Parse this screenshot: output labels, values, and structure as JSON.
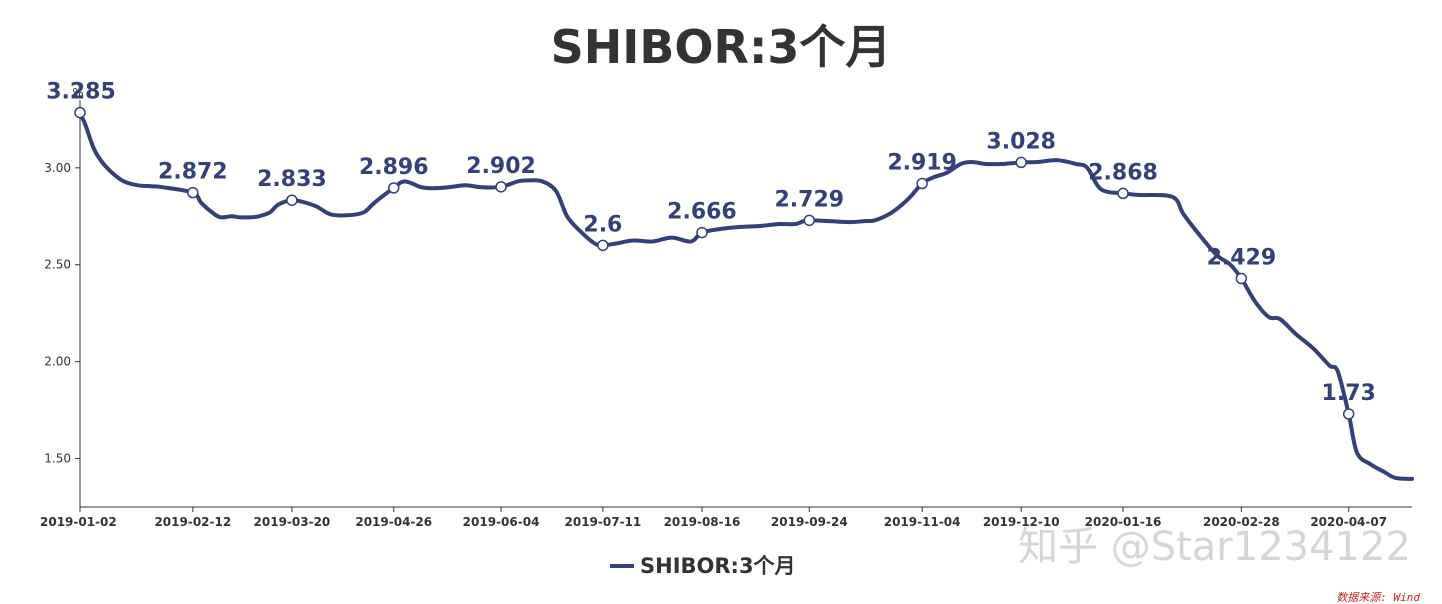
{
  "colors": {
    "line": "#34407a",
    "axis": "#333333",
    "text": "#333333",
    "source": "#cc2222",
    "watermark": "#d6d6d6"
  },
  "watermark": "知乎 @Star1234122",
  "source": "数据来源: Wind",
  "chart_data": {
    "type": "line",
    "title": "SHIBOR:3个月",
    "y_unit": "%",
    "ylim": [
      1.25,
      3.35
    ],
    "y_ticks": [
      1.5,
      2.0,
      2.5,
      3.0
    ],
    "y_tick_labels": [
      "1.50",
      "2.00",
      "2.50",
      "3.00"
    ],
    "x_range": [
      "2019-01-02",
      "2020-04-30"
    ],
    "x_ticks": [
      "2019-01-02",
      "2019-02-12",
      "2019-03-20",
      "2019-04-26",
      "2019-06-04",
      "2019-07-11",
      "2019-08-16",
      "2019-09-24",
      "2019-11-04",
      "2019-12-10",
      "2020-01-16",
      "2020-02-28",
      "2020-04-07"
    ],
    "grid": false,
    "legend_position": "bottom",
    "series": [
      {
        "name": "SHIBOR:3个月",
        "x": [
          "2019-01-02",
          "2019-01-04",
          "2019-01-07",
          "2019-01-10",
          "2019-01-14",
          "2019-01-18",
          "2019-01-23",
          "2019-01-28",
          "2019-02-01",
          "2019-02-12",
          "2019-02-15",
          "2019-02-19",
          "2019-02-22",
          "2019-02-26",
          "2019-03-01",
          "2019-03-05",
          "2019-03-08",
          "2019-03-12",
          "2019-03-15",
          "2019-03-20",
          "2019-03-25",
          "2019-03-29",
          "2019-04-03",
          "2019-04-09",
          "2019-04-15",
          "2019-04-19",
          "2019-04-26",
          "2019-04-30",
          "2019-05-06",
          "2019-05-10",
          "2019-05-16",
          "2019-05-22",
          "2019-05-28",
          "2019-06-04",
          "2019-06-10",
          "2019-06-14",
          "2019-06-19",
          "2019-06-24",
          "2019-06-28",
          "2019-07-03",
          "2019-07-08",
          "2019-07-11",
          "2019-07-16",
          "2019-07-22",
          "2019-07-29",
          "2019-08-05",
          "2019-08-12",
          "2019-08-16",
          "2019-08-23",
          "2019-08-30",
          "2019-09-06",
          "2019-09-13",
          "2019-09-19",
          "2019-09-24",
          "2019-10-08",
          "2019-10-14",
          "2019-10-18",
          "2019-10-24",
          "2019-10-30",
          "2019-11-04",
          "2019-11-08",
          "2019-11-13",
          "2019-11-18",
          "2019-11-22",
          "2019-11-27",
          "2019-12-03",
          "2019-12-10",
          "2019-12-16",
          "2019-12-23",
          "2019-12-30",
          "2020-01-03",
          "2020-01-08",
          "2020-01-16",
          "2020-01-22",
          "2020-02-03",
          "2020-02-07",
          "2020-02-13",
          "2020-02-19",
          "2020-02-24",
          "2020-02-28",
          "2020-03-04",
          "2020-03-09",
          "2020-03-13",
          "2020-03-19",
          "2020-03-25",
          "2020-03-31",
          "2020-04-03",
          "2020-04-07",
          "2020-04-10",
          "2020-04-15",
          "2020-04-20",
          "2020-04-24",
          "2020-04-30"
        ],
        "values": [
          3.285,
          3.22,
          3.1,
          3.03,
          2.97,
          2.93,
          2.91,
          2.905,
          2.9,
          2.872,
          2.82,
          2.77,
          2.745,
          2.75,
          2.745,
          2.745,
          2.75,
          2.77,
          2.81,
          2.833,
          2.82,
          2.8,
          2.76,
          2.755,
          2.77,
          2.82,
          2.896,
          2.93,
          2.9,
          2.895,
          2.9,
          2.91,
          2.9,
          2.902,
          2.93,
          2.935,
          2.93,
          2.88,
          2.75,
          2.67,
          2.61,
          2.6,
          2.61,
          2.625,
          2.62,
          2.64,
          2.62,
          2.666,
          2.685,
          2.695,
          2.7,
          2.71,
          2.71,
          2.729,
          2.72,
          2.725,
          2.73,
          2.77,
          2.84,
          2.919,
          2.95,
          2.975,
          3.02,
          3.03,
          3.02,
          3.02,
          3.028,
          3.03,
          3.04,
          3.02,
          3.0,
          2.89,
          2.868,
          2.86,
          2.85,
          2.76,
          2.65,
          2.55,
          2.5,
          2.429,
          2.31,
          2.23,
          2.22,
          2.14,
          2.07,
          1.98,
          1.95,
          1.73,
          1.53,
          1.47,
          1.43,
          1.4,
          1.395
        ]
      }
    ],
    "data_labels": [
      {
        "x": "2019-01-02",
        "value": 3.285,
        "label": "3.285"
      },
      {
        "x": "2019-02-12",
        "value": 2.872,
        "label": "2.872"
      },
      {
        "x": "2019-03-20",
        "value": 2.833,
        "label": "2.833"
      },
      {
        "x": "2019-04-26",
        "value": 2.896,
        "label": "2.896"
      },
      {
        "x": "2019-06-04",
        "value": 2.902,
        "label": "2.902"
      },
      {
        "x": "2019-07-11",
        "value": 2.6,
        "label": "2.6"
      },
      {
        "x": "2019-08-16",
        "value": 2.666,
        "label": "2.666"
      },
      {
        "x": "2019-09-24",
        "value": 2.729,
        "label": "2.729"
      },
      {
        "x": "2019-11-04",
        "value": 2.919,
        "label": "2.919"
      },
      {
        "x": "2019-12-10",
        "value": 3.028,
        "label": "3.028"
      },
      {
        "x": "2020-01-16",
        "value": 2.868,
        "label": "2.868"
      },
      {
        "x": "2020-02-28",
        "value": 2.429,
        "label": "2.429"
      },
      {
        "x": "2020-04-07",
        "value": 1.73,
        "label": "1.73"
      }
    ]
  }
}
